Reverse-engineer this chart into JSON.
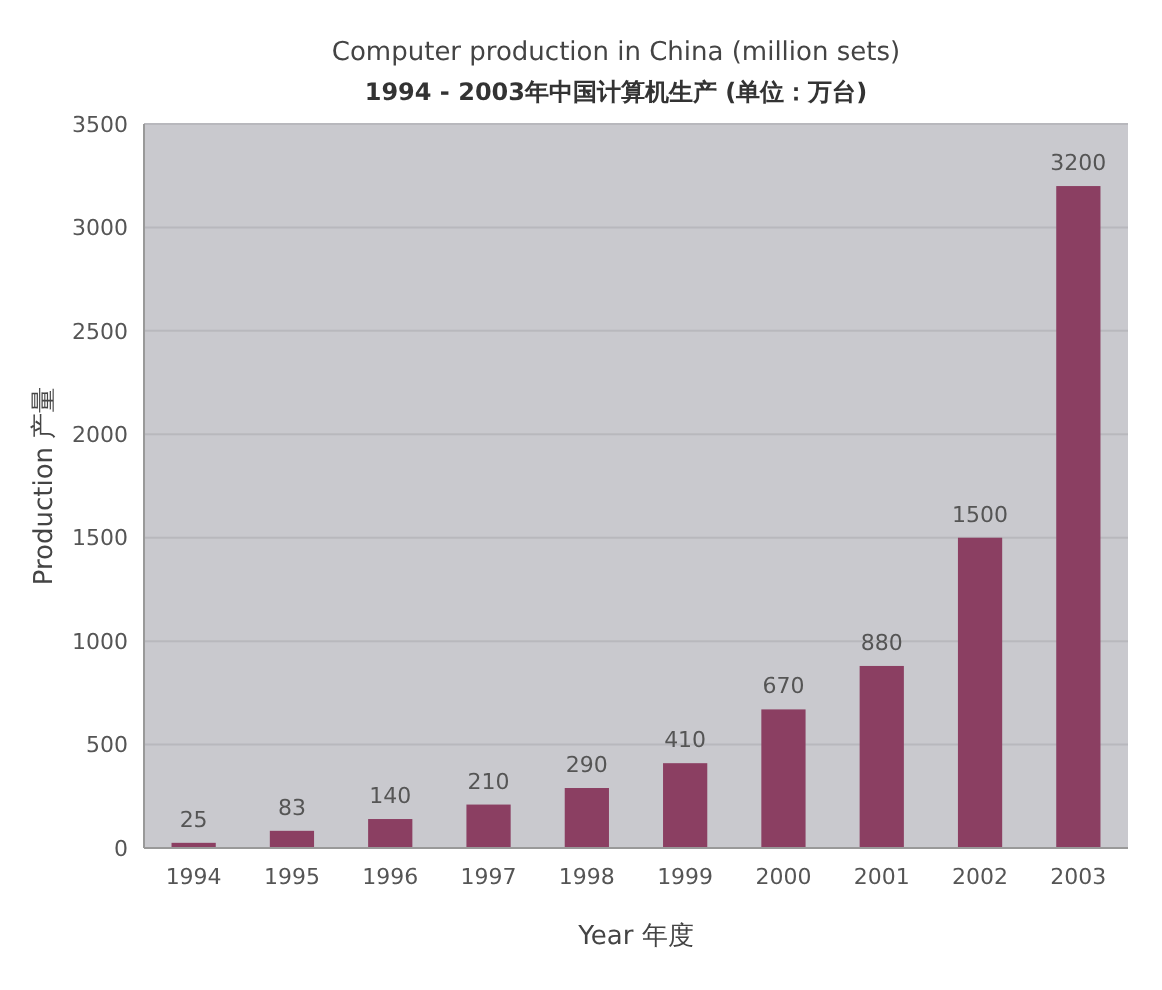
{
  "chart_data": {
    "type": "bar",
    "title": "Computer production in China (million sets)",
    "subtitle": "1994 - 2003年中国计算机生产 (单位：万台)",
    "xlabel": "Year 年度",
    "ylabel": "Production 产量",
    "categories": [
      "1994",
      "1995",
      "1996",
      "1997",
      "1998",
      "1999",
      "2000",
      "2001",
      "2002",
      "2003"
    ],
    "values": [
      25,
      83,
      140,
      210,
      290,
      410,
      670,
      880,
      1500,
      3200
    ],
    "color": "#8b3f62",
    "ylim": [
      0,
      3500
    ],
    "yticks": [
      0,
      500,
      1000,
      1500,
      2000,
      2500,
      3000,
      3500
    ],
    "grid": "y",
    "data_labels": true
  }
}
